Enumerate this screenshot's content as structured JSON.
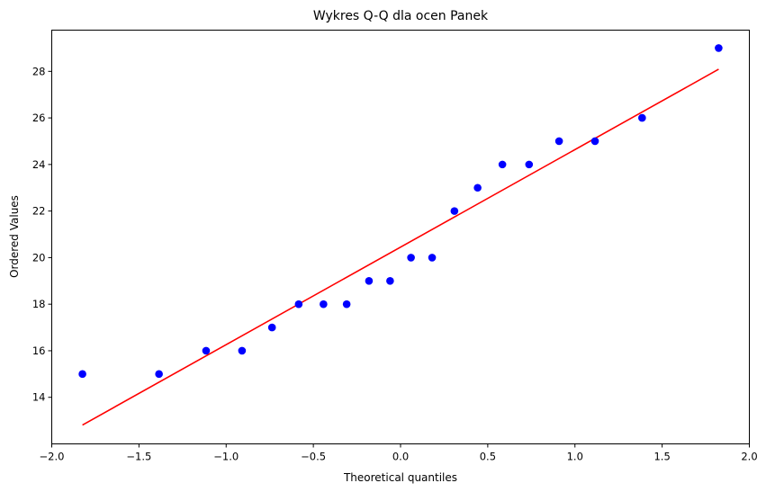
{
  "chart_data": {
    "type": "scatter",
    "title": "Wykres Q-Q dla ocen Panek",
    "xlabel": "Theoretical quantiles",
    "ylabel": "Ordered Values",
    "xlim": [
      -2.0,
      2.0
    ],
    "ylim": [
      12.0,
      29.77
    ],
    "xticks": [
      -2.0,
      -1.5,
      -1.0,
      -0.5,
      0.0,
      0.5,
      1.0,
      1.5,
      2.0
    ],
    "xtick_labels": [
      "−2.0",
      "−1.5",
      "−1.0",
      "−0.5",
      "0.0",
      "0.5",
      "1.0",
      "1.5",
      "2.0"
    ],
    "yticks": [
      14,
      16,
      18,
      20,
      22,
      24,
      26,
      28
    ],
    "ytick_labels": [
      "14",
      "16",
      "18",
      "20",
      "22",
      "24",
      "26",
      "28"
    ],
    "grid": false,
    "legend": null,
    "series": [
      {
        "name": "Ordered Values",
        "type": "scatter",
        "color": "#0000ff",
        "x": [
          -1.824,
          -1.385,
          -1.115,
          -0.909,
          -0.737,
          -0.584,
          -0.442,
          -0.309,
          -0.181,
          -0.06,
          0.06,
          0.181,
          0.309,
          0.442,
          0.584,
          0.737,
          0.909,
          1.115,
          1.385,
          1.824
        ],
        "y": [
          15,
          15,
          16,
          16,
          17,
          18,
          18,
          18,
          19,
          19,
          20,
          20,
          22,
          23,
          24,
          24,
          25,
          25,
          26,
          29
        ]
      },
      {
        "name": "Fit line",
        "type": "line",
        "color": "#ff0000",
        "x": [
          -1.824,
          1.824
        ],
        "y": [
          12.81,
          28.09
        ]
      }
    ]
  }
}
